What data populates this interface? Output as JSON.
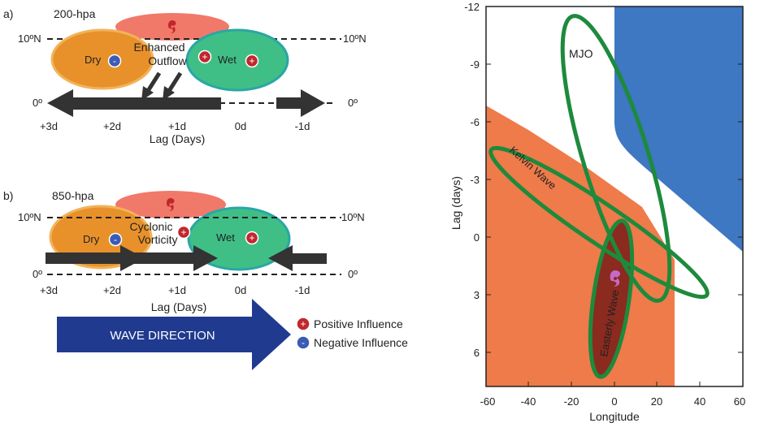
{
  "panel_a": {
    "tag": "a)",
    "level": "200-hpa",
    "lat_left": "10ºN",
    "lat_right": "10ºN",
    "eq_left": "0º",
    "eq_right": "0º",
    "dry": "Dry",
    "wet": "Wet",
    "outflow_line1": "Enhanced",
    "outflow_line2": "Outflow",
    "ticks": [
      "+3d",
      "+2d",
      "+1d",
      "0d",
      "-1d"
    ],
    "xlabel": "Lag (Days)"
  },
  "panel_b": {
    "tag": "b)",
    "level": "850-hpa",
    "lat_left": "10ºN",
    "lat_right": "10ºN",
    "eq_left": "0º",
    "eq_right": "0º",
    "dry": "Dry",
    "wet": "Wet",
    "vort_line1": "Cyclonic",
    "vort_line2": "Vorticity",
    "ticks": [
      "+3d",
      "+2d",
      "+1d",
      "0d",
      "-1d"
    ],
    "xlabel": "Lag (Days)"
  },
  "wave_direction": "WAVE DIRECTION",
  "legend": {
    "positive": "Positive Influence",
    "negative": "Negative Influence",
    "plus": "+",
    "minus": "-"
  },
  "right_panel": {
    "xlabel": "Longitude",
    "ylabel": "Lag (days)",
    "x_ticks": [
      "-60",
      "-40",
      "-20",
      "0",
      "20",
      "40",
      "60"
    ],
    "y_ticks": [
      "-12",
      "-9",
      "-6",
      "-3",
      "0",
      "3",
      "6"
    ],
    "mjo": "MJO",
    "kelvin": "Kelvin Wave",
    "easterly": "Easterly Wave"
  },
  "colors": {
    "dry": "#e8912a",
    "wet": "#3fbf86",
    "storm": "#f06a5a",
    "arrow": "#333333",
    "wave_arrow": "#1f3a8f",
    "positive": "#c0272d",
    "negative": "#3b5bb5",
    "orange_region": "#ef7a4a",
    "blue_region": "#3e77c2",
    "ellipse": "#1d8a3c",
    "easterly_fill": "#8b2a1e"
  }
}
